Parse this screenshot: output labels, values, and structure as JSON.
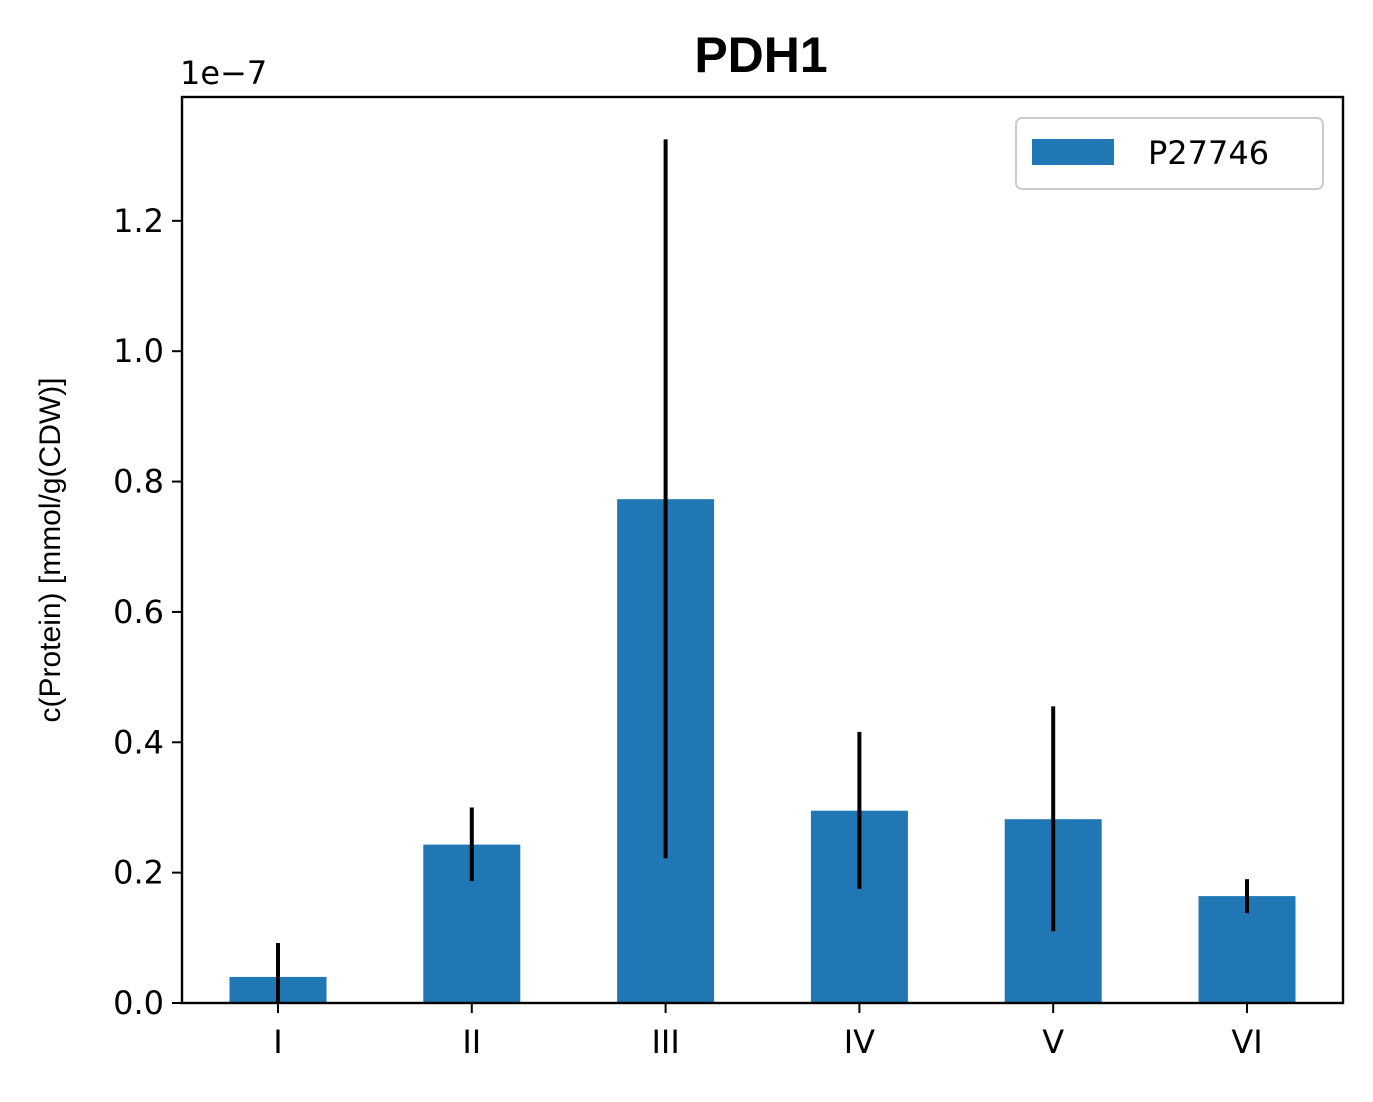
{
  "chart_data": {
    "type": "bar",
    "title": "PDH1",
    "xlabel": "",
    "ylabel": "c(Protein) [mmol/g(CDW)]",
    "offset_label": "1e−7",
    "categories": [
      "I",
      "II",
      "III",
      "IV",
      "V",
      "VI"
    ],
    "series": [
      {
        "name": "P27746",
        "color": "#1f77b4",
        "values": [
          0.04,
          0.243,
          0.773,
          0.295,
          0.282,
          0.164
        ],
        "error_low": [
          0.0,
          0.187,
          0.222,
          0.175,
          0.11,
          0.138
        ],
        "error_high": [
          0.092,
          0.3,
          1.325,
          0.416,
          0.455,
          0.19
        ]
      }
    ],
    "ylim": [
      0,
      1.39
    ],
    "yticks": [
      "0.0",
      "0.2",
      "0.4",
      "0.6",
      "0.8",
      "1.0",
      "1.2"
    ],
    "grid": false,
    "legend": "top-right"
  }
}
